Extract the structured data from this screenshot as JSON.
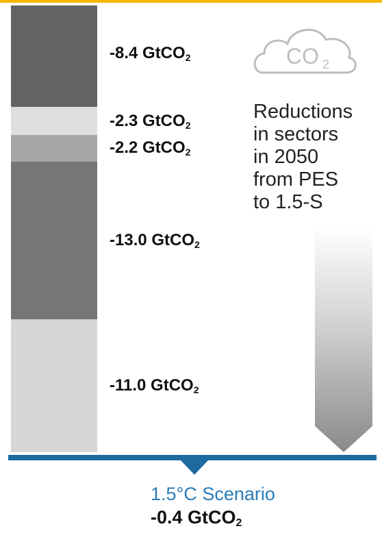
{
  "chart_data": {
    "type": "bar",
    "unit": "GtCO₂",
    "segments": [
      {
        "value": -8.4,
        "label": "-8.4 GtCO",
        "color": "#636363"
      },
      {
        "value": -2.3,
        "label": "-2.3 GtCO",
        "color": "#dedede"
      },
      {
        "value": -2.2,
        "label": "-2.2 GtCO",
        "color": "#a6a6a6"
      },
      {
        "value": -13.0,
        "label": "-13.0 GtCO",
        "color": "#767676"
      },
      {
        "value": -11.0,
        "label": "-11.0 GtCO",
        "color": "#d6d6d6"
      }
    ],
    "cloud_text": "CO",
    "cloud_subscript": "2",
    "note_lines": [
      "Reductions",
      "in sectors",
      "in 2050",
      "from PES",
      "to 1.5-S"
    ],
    "scenario_label": "1.5°C Scenario",
    "scenario_value": -0.4,
    "scenario_value_label": "-0.4 GtCO"
  },
  "colors": {
    "top_rule": "#f5b800",
    "baseline": "#1e6aa0",
    "scenario_text": "#2a7cb8"
  }
}
